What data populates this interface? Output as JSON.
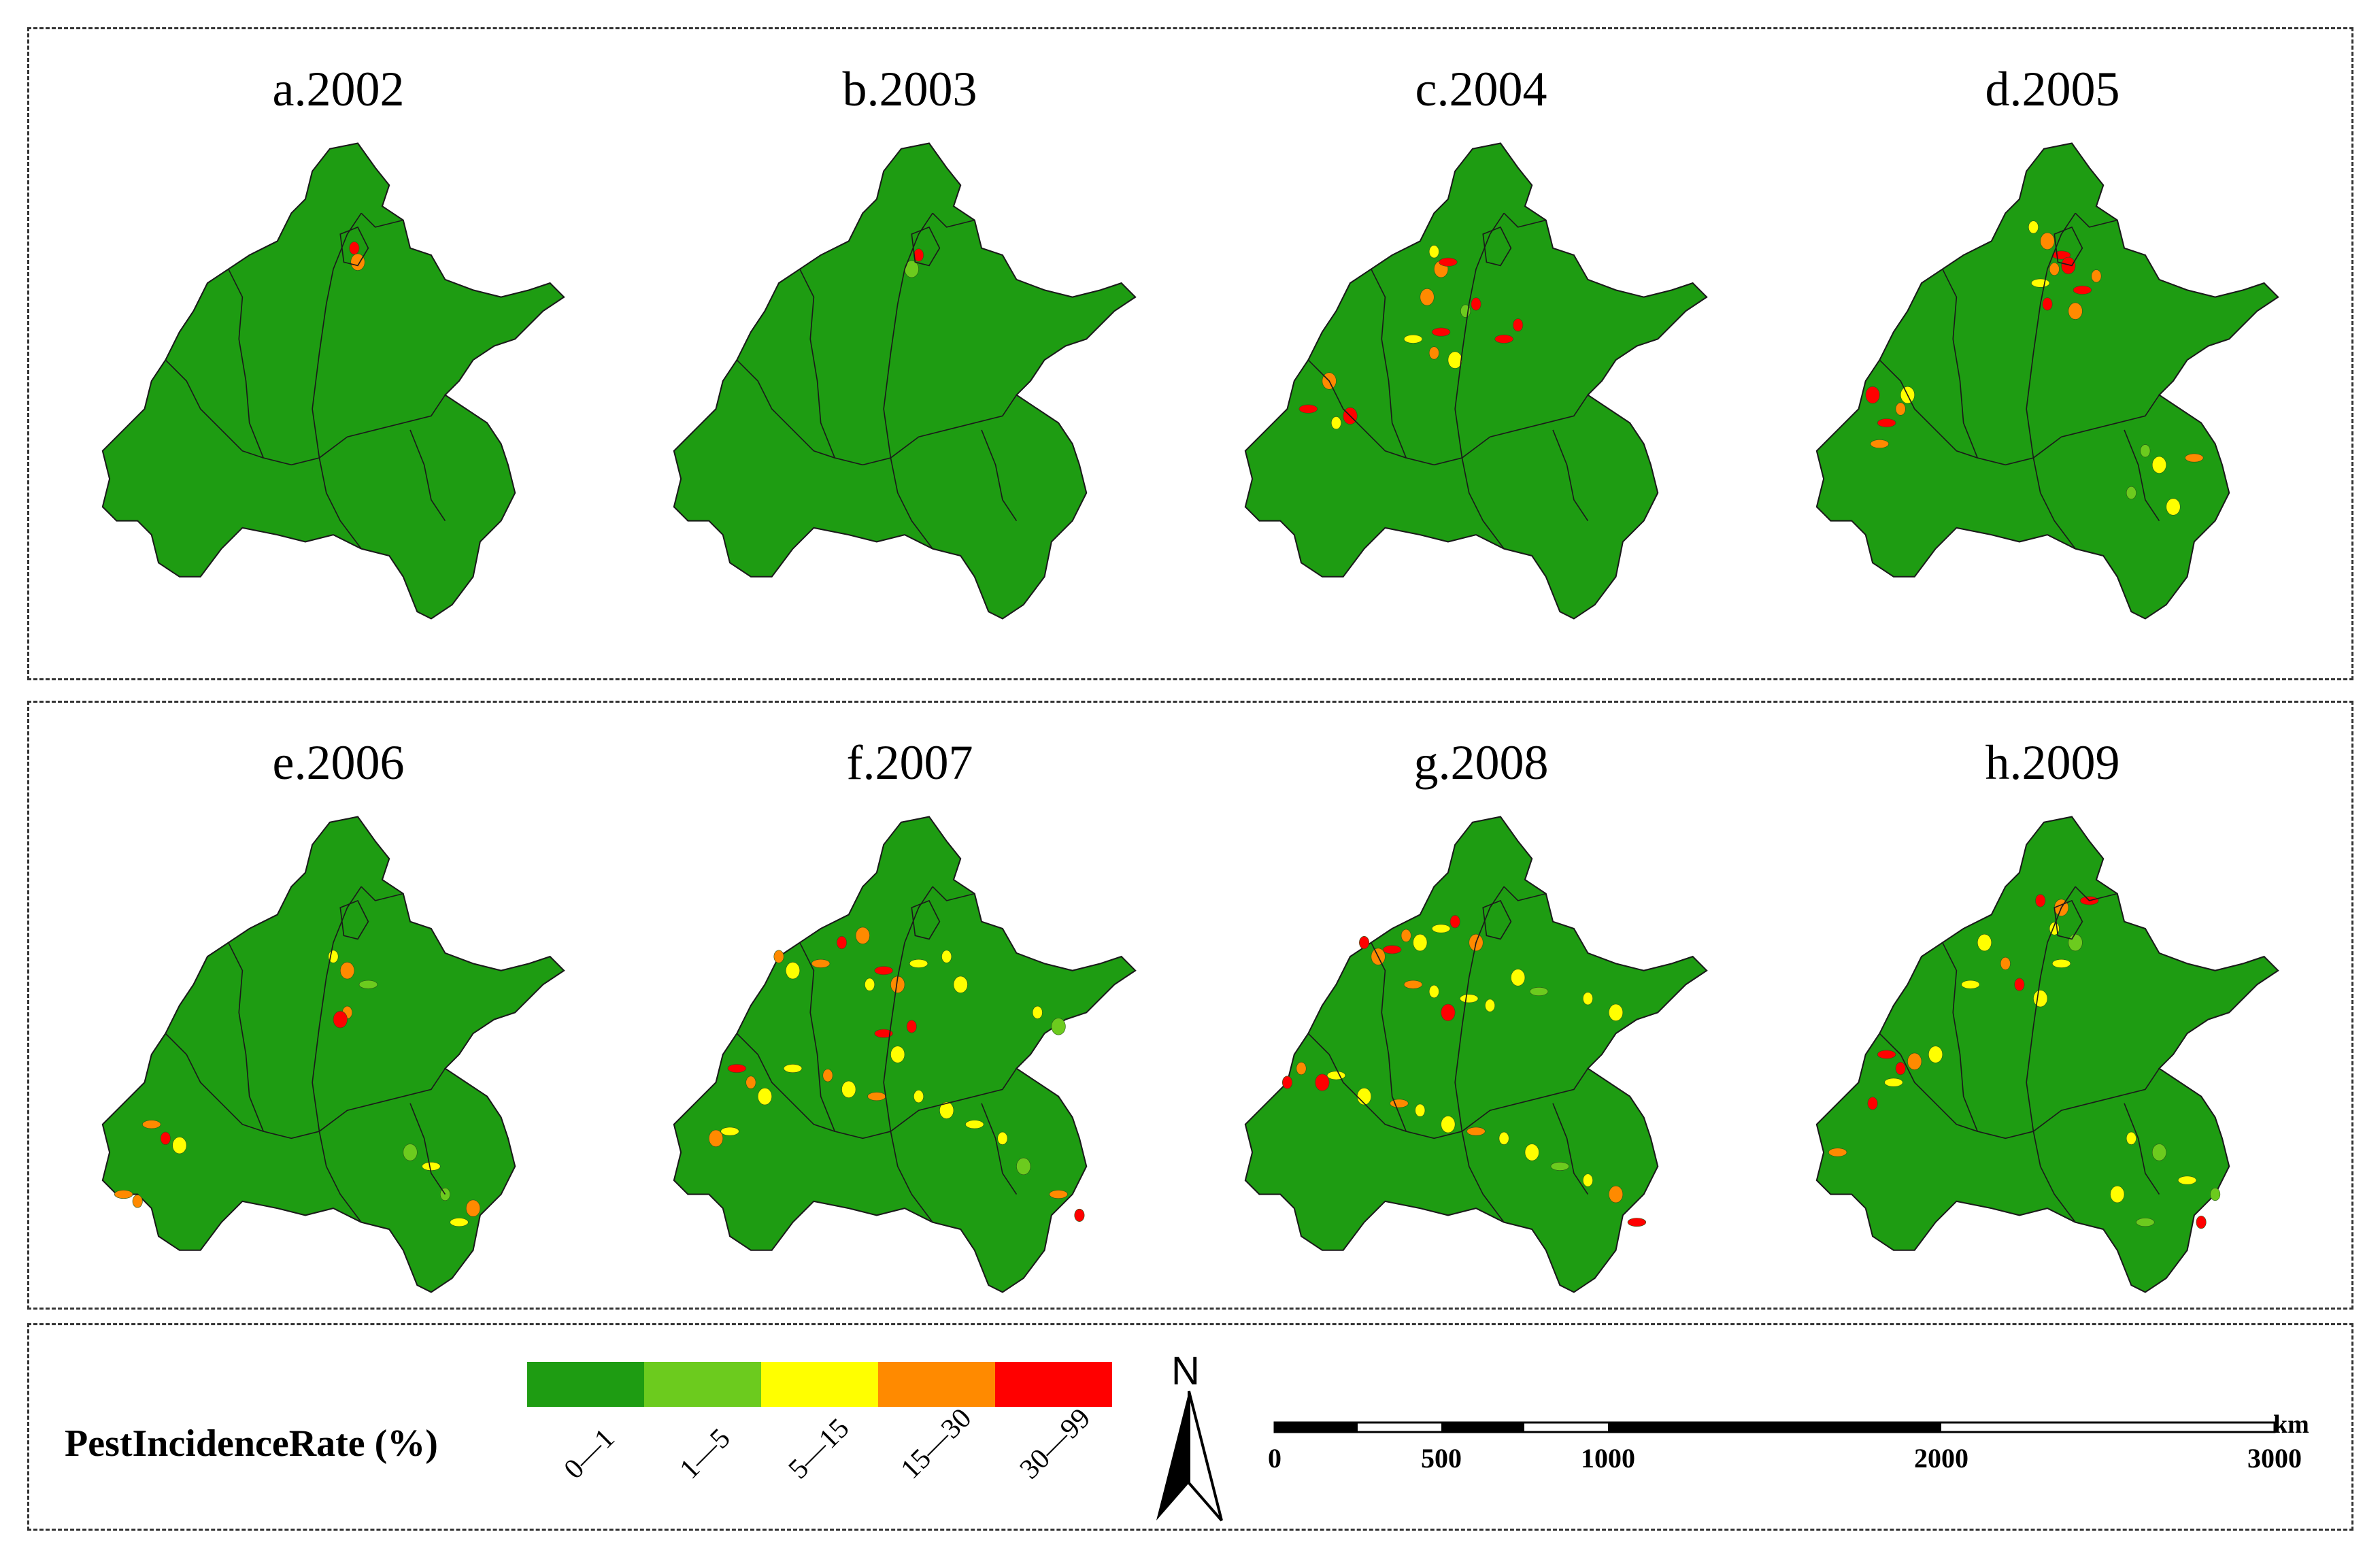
{
  "panels": [
    {
      "title": "a.2002",
      "year": 2002
    },
    {
      "title": "b.2003",
      "year": 2003
    },
    {
      "title": "c.2004",
      "year": 2004
    },
    {
      "title": "d.2005",
      "year": 2005
    },
    {
      "title": "e.2006",
      "year": 2006
    },
    {
      "title": "f.2007",
      "year": 2007
    },
    {
      "title": "g.2008",
      "year": 2008
    },
    {
      "title": "h.2009",
      "year": 2009
    }
  ],
  "legend": {
    "title": "PestIncidenceRate (%)",
    "classes": [
      {
        "label": "0—1",
        "color": "#1e9c12"
      },
      {
        "label": "1—5",
        "color": "#6ccb1e"
      },
      {
        "label": "5—15",
        "color": "#ffff00"
      },
      {
        "label": "15—30",
        "color": "#ff8a00"
      },
      {
        "label": "30—99",
        "color": "#ff0000"
      }
    ]
  },
  "north_arrow": {
    "label": "N"
  },
  "scale_bar": {
    "unit": "km",
    "ticks": [
      "0",
      "500",
      "1000",
      "2000",
      "3000"
    ]
  },
  "colors": {
    "border": "#1a1a1a",
    "base_fill": "#1e9c12"
  }
}
